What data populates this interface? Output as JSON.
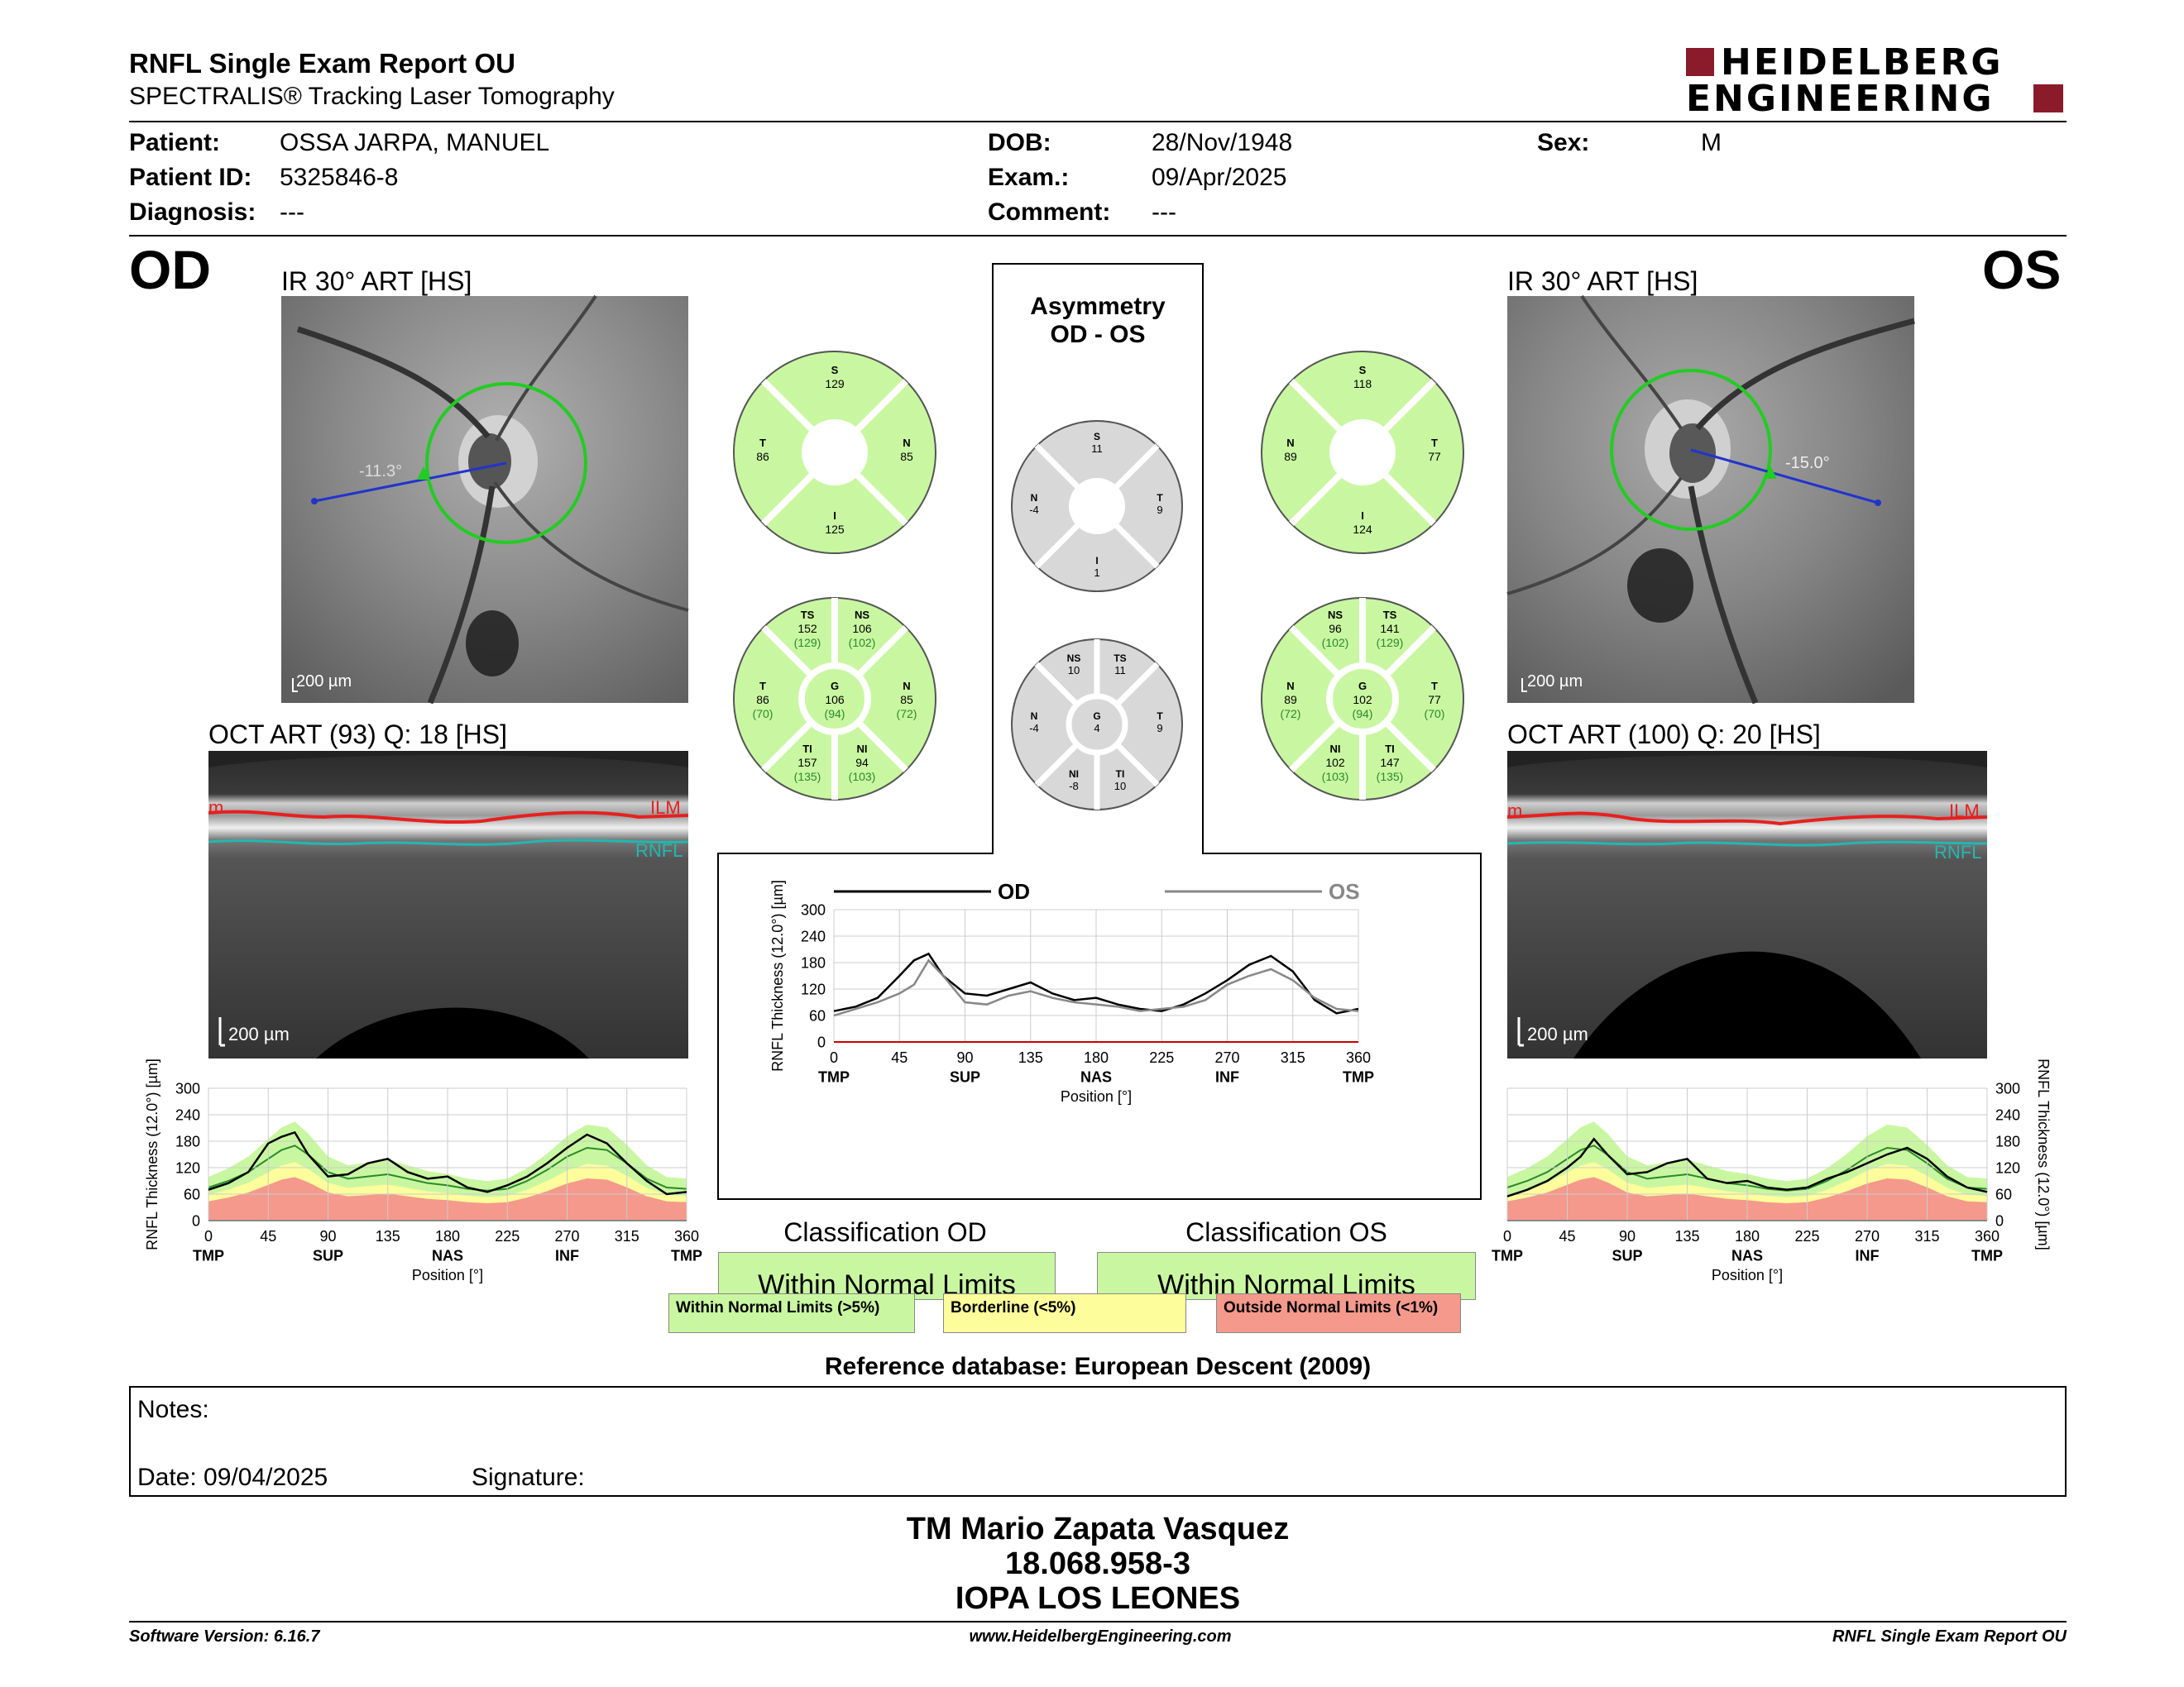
{
  "header": {
    "title": "RNFL Single Exam Report OU",
    "subtitle": "SPECTRALIS® Tracking Laser Tomography",
    "logo_top": "HEIDELBERG",
    "logo_bottom": "ENGINEERING"
  },
  "patient": {
    "patient_label": "Patient:",
    "patient_value": "OSSA JARPA, MANUEL",
    "dob_label": "DOB:",
    "dob_value": "28/Nov/1948",
    "sex_label": "Sex:",
    "sex_value": "M",
    "id_label": "Patient ID:",
    "id_value": "5325846-8",
    "exam_label": "Exam.:",
    "exam_value": "09/Apr/2025",
    "diag_label": "Diagnosis:",
    "diag_value": "---",
    "comment_label": "Comment:",
    "comment_value": "---"
  },
  "od": {
    "eye": "OD",
    "ir_title": "IR 30° ART [HS]",
    "angle": "-11.3°",
    "scale": "200 µm",
    "oct_title": "OCT ART (93) Q: 18 [HS]",
    "oct_scale": "200 µm",
    "ilm": "ILM",
    "rnfl": "RNFL",
    "ilm_partial": "m",
    "sectors4": {
      "S": "129",
      "T": "86",
      "N": "85",
      "I": "125"
    },
    "sectors6": {
      "TS": "152",
      "TS_ref": "(129)",
      "NS": "106",
      "NS_ref": "(102)",
      "T": "86",
      "T_ref": "(70)",
      "G": "106",
      "G_ref": "(94)",
      "N": "85",
      "N_ref": "(72)",
      "TI": "157",
      "TI_ref": "(135)",
      "NI": "94",
      "NI_ref": "(103)"
    }
  },
  "os": {
    "eye": "OS",
    "ir_title": "IR 30° ART [HS]",
    "angle": "-15.0°",
    "scale": "200 µm",
    "oct_title": "OCT ART (100) Q: 20 [HS]",
    "oct_scale": "200 µm",
    "ilm": "ILM",
    "rnfl": "RNFL",
    "ilm_partial": "m",
    "sectors4": {
      "S": "118",
      "N": "89",
      "T": "77",
      "I": "124"
    },
    "sectors6": {
      "NS": "96",
      "NS_ref": "(102)",
      "TS": "141",
      "TS_ref": "(129)",
      "N": "89",
      "N_ref": "(72)",
      "G": "102",
      "G_ref": "(94)",
      "T": "77",
      "T_ref": "(70)",
      "NI": "102",
      "NI_ref": "(103)",
      "TI": "147",
      "TI_ref": "(135)"
    }
  },
  "asym": {
    "title1": "Asymmetry",
    "title2": "OD - OS",
    "sectors4": {
      "S": "11",
      "N": "-4",
      "T": "9",
      "I": "1"
    },
    "sectors6": {
      "NS": "10",
      "TS": "11",
      "N": "-4",
      "G": "4",
      "T": "9",
      "NI": "-8",
      "TI": "10"
    }
  },
  "sector_labels": {
    "S": "S",
    "T": "T",
    "N": "N",
    "I": "I",
    "TS": "TS",
    "NS": "NS",
    "G": "G",
    "TI": "TI",
    "NI": "NI"
  },
  "chart_data": [
    {
      "type": "line",
      "title": "",
      "xlabel": "Position [°]",
      "ylabel": "RNFL Thickness (12.0°) [µm]",
      "xlim": [
        0,
        360
      ],
      "ylim": [
        0,
        300
      ],
      "x_ticks": [
        0,
        45,
        90,
        135,
        180,
        225,
        270,
        315,
        360
      ],
      "y_ticks": [
        0,
        60,
        120,
        180,
        240,
        300
      ],
      "x_region_labels": [
        "TMP",
        "SUP",
        "NAS",
        "INF",
        "TMP"
      ],
      "legend": [
        "OD",
        "OS"
      ],
      "x": [
        0,
        15,
        30,
        45,
        55,
        65,
        75,
        90,
        105,
        120,
        135,
        150,
        165,
        180,
        195,
        210,
        225,
        240,
        255,
        270,
        285,
        300,
        315,
        330,
        345,
        360
      ],
      "series": [
        {
          "name": "OD",
          "values": [
            70,
            80,
            100,
            150,
            185,
            200,
            150,
            110,
            105,
            120,
            135,
            110,
            95,
            100,
            85,
            75,
            70,
            85,
            110,
            140,
            175,
            195,
            160,
            95,
            65,
            75
          ]
        },
        {
          "name": "OS",
          "values": [
            60,
            75,
            90,
            110,
            130,
            185,
            150,
            90,
            85,
            105,
            115,
            100,
            90,
            85,
            80,
            70,
            75,
            80,
            95,
            130,
            150,
            165,
            140,
            100,
            75,
            70
          ]
        }
      ]
    },
    {
      "type": "line",
      "title": "",
      "xlabel": "Position [°]",
      "ylabel": "RNFL Thickness (12.0°) [µm]",
      "xlim": [
        0,
        360
      ],
      "ylim": [
        0,
        300
      ],
      "x_ticks": [
        0,
        45,
        90,
        135,
        180,
        225,
        270,
        315,
        360
      ],
      "y_ticks": [
        0,
        60,
        120,
        180,
        240,
        300
      ],
      "x_region_labels": [
        "TMP",
        "SUP",
        "NAS",
        "INF",
        "TMP"
      ],
      "x": [
        0,
        15,
        30,
        45,
        55,
        65,
        75,
        90,
        105,
        120,
        135,
        150,
        165,
        180,
        195,
        210,
        225,
        240,
        255,
        270,
        285,
        300,
        315,
        330,
        345,
        360
      ],
      "series": [
        {
          "name": "",
          "values": [
            70,
            85,
            110,
            175,
            190,
            200,
            150,
            100,
            105,
            130,
            140,
            110,
            95,
            100,
            75,
            65,
            80,
            100,
            130,
            165,
            195,
            175,
            130,
            90,
            60,
            65
          ]
        }
      ]
    },
    {
      "type": "line",
      "title": "",
      "xlabel": "Position [°]",
      "ylabel": "RNFL Thickness (12.0°) [µm]",
      "xlim": [
        0,
        360
      ],
      "ylim": [
        0,
        300
      ],
      "x_ticks": [
        0,
        45,
        90,
        135,
        180,
        225,
        270,
        315,
        360
      ],
      "y_ticks": [
        0,
        60,
        120,
        180,
        240,
        300
      ],
      "x_region_labels": [
        "TMP",
        "SUP",
        "NAS",
        "INF",
        "TMP"
      ],
      "x": [
        0,
        15,
        30,
        45,
        55,
        65,
        75,
        90,
        105,
        120,
        135,
        150,
        165,
        180,
        195,
        210,
        225,
        240,
        255,
        270,
        285,
        300,
        315,
        330,
        345,
        360
      ],
      "series": [
        {
          "name": "",
          "values": [
            55,
            70,
            90,
            120,
            145,
            185,
            150,
            105,
            110,
            130,
            140,
            95,
            85,
            90,
            75,
            70,
            75,
            95,
            110,
            130,
            150,
            165,
            140,
            100,
            75,
            65
          ]
        }
      ]
    }
  ],
  "classification": {
    "od_label": "Classification OD",
    "od_value": "Within Normal Limits",
    "os_label": "Classification OS",
    "os_value": "Within Normal Limits"
  },
  "legend_boxes": {
    "normal": "Within Normal Limits (>5%)",
    "border": "Borderline (<5%)",
    "outside": "Outside Normal Limits (<1%)"
  },
  "reference": "Reference database: European Descent (2009)",
  "notes": {
    "notes_label": "Notes:",
    "date_label": "Date: 09/04/2025",
    "signature_label": "Signature:"
  },
  "signer": {
    "name": "TM Mario Zapata Vasquez",
    "id": "18.068.958-3",
    "clinic": "IOPA LOS LEONES"
  },
  "footer": {
    "software": "Software Version: 6.16.7",
    "url": "www.HeidelbergEngineering.com",
    "report": "RNFL Single Exam Report OU"
  },
  "colors": {
    "normal": "#c9f7a1",
    "border": "#fdfd9c",
    "outside": "#f4998b",
    "od_line": "#000000",
    "os_line": "#888888",
    "circle": "#22cc22",
    "gray_sector": "#d8d8d8"
  }
}
